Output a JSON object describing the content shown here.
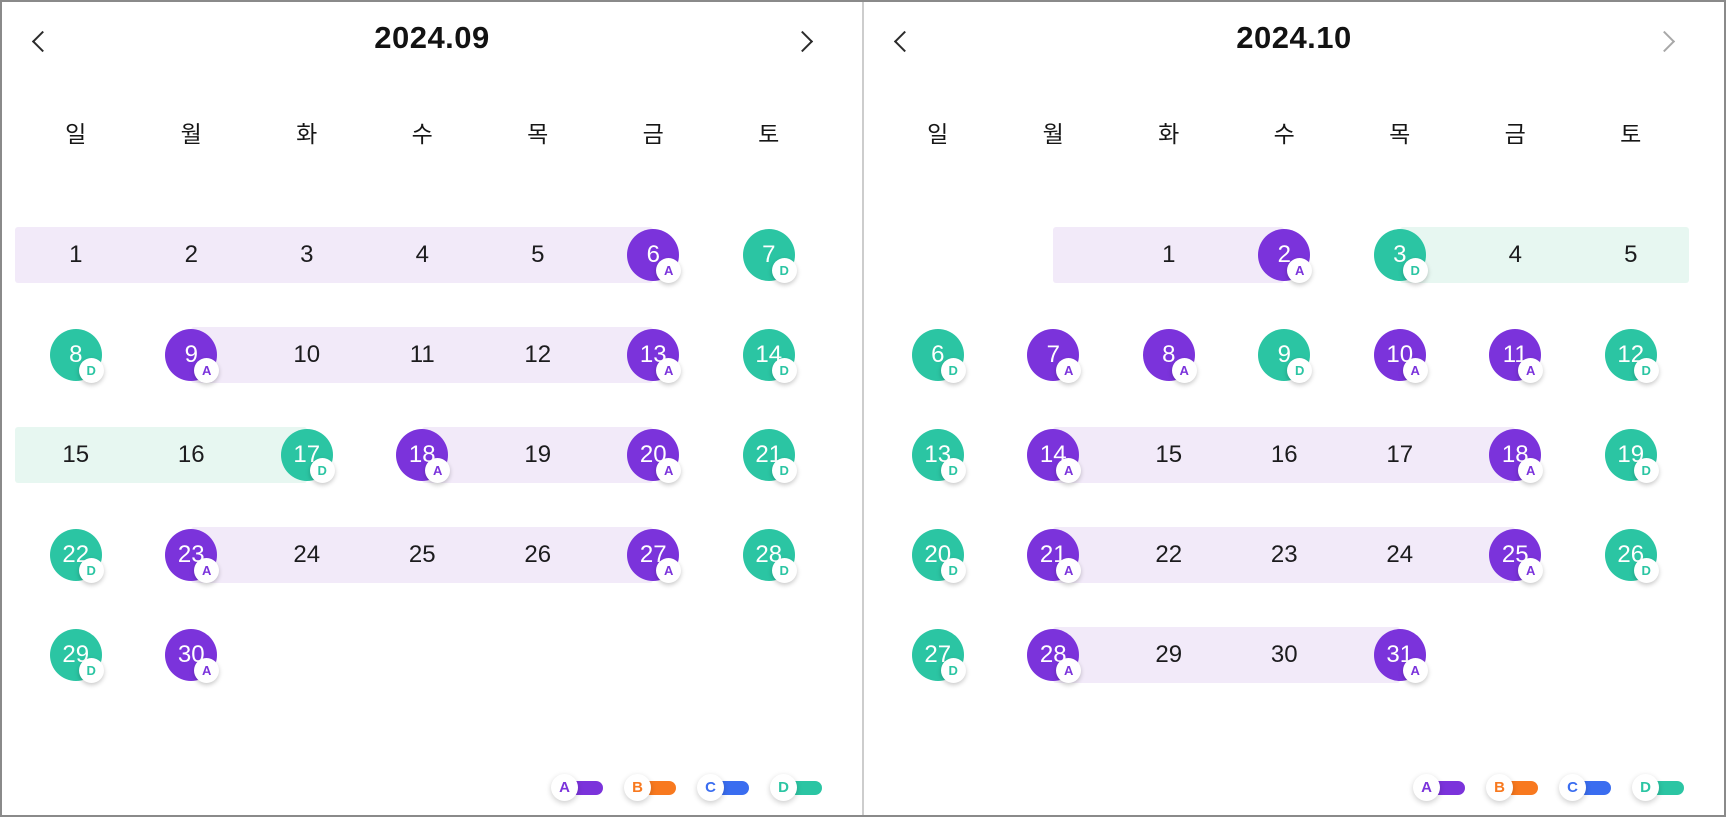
{
  "colors": {
    "A": "#7b33db",
    "B": "#f8791f",
    "C": "#3a6df0",
    "D": "#2bc5a3",
    "band_A": "#f2eaf9",
    "band_D": "#e7f7f1",
    "arrow_enabled": "#2b2b2b",
    "arrow_disabled": "#a8a8a8"
  },
  "weekday_labels": [
    "일",
    "월",
    "화",
    "수",
    "목",
    "금",
    "토"
  ],
  "legend": [
    {
      "label": "A"
    },
    {
      "label": "B"
    },
    {
      "label": "C"
    },
    {
      "label": "D"
    }
  ],
  "months": [
    {
      "title": "2024.09",
      "nav": {
        "prev_enabled": true,
        "next_enabled": true
      },
      "weeks": [
        {
          "bands": [
            {
              "type": "A",
              "from": "edge-left",
              "to": 5
            }
          ],
          "days": [
            {
              "day": 1,
              "col": 0
            },
            {
              "day": 2,
              "col": 1
            },
            {
              "day": 3,
              "col": 2
            },
            {
              "day": 4,
              "col": 3
            },
            {
              "day": 5,
              "col": 4
            },
            {
              "day": 6,
              "col": 5,
              "marker": "A"
            },
            {
              "day": 7,
              "col": 6,
              "marker": "D"
            }
          ]
        },
        {
          "bands": [
            {
              "type": "A",
              "from": 1,
              "to": 5
            }
          ],
          "days": [
            {
              "day": 8,
              "col": 0,
              "marker": "D"
            },
            {
              "day": 9,
              "col": 1,
              "marker": "A"
            },
            {
              "day": 10,
              "col": 2
            },
            {
              "day": 11,
              "col": 3
            },
            {
              "day": 12,
              "col": 4
            },
            {
              "day": 13,
              "col": 5,
              "marker": "A"
            },
            {
              "day": 14,
              "col": 6,
              "marker": "D"
            }
          ]
        },
        {
          "bands": [
            {
              "type": "D",
              "from": "edge-left",
              "to": 2
            },
            {
              "type": "A",
              "from": 3,
              "to": 5
            }
          ],
          "days": [
            {
              "day": 15,
              "col": 0
            },
            {
              "day": 16,
              "col": 1
            },
            {
              "day": 17,
              "col": 2,
              "marker": "D"
            },
            {
              "day": 18,
              "col": 3,
              "marker": "A"
            },
            {
              "day": 19,
              "col": 4
            },
            {
              "day": 20,
              "col": 5,
              "marker": "A"
            },
            {
              "day": 21,
              "col": 6,
              "marker": "D"
            }
          ]
        },
        {
          "bands": [
            {
              "type": "A",
              "from": 1,
              "to": 5
            }
          ],
          "days": [
            {
              "day": 22,
              "col": 0,
              "marker": "D"
            },
            {
              "day": 23,
              "col": 1,
              "marker": "A"
            },
            {
              "day": 24,
              "col": 2
            },
            {
              "day": 25,
              "col": 3
            },
            {
              "day": 26,
              "col": 4
            },
            {
              "day": 27,
              "col": 5,
              "marker": "A"
            },
            {
              "day": 28,
              "col": 6,
              "marker": "D"
            }
          ]
        },
        {
          "bands": [],
          "days": [
            {
              "day": 29,
              "col": 0,
              "marker": "D"
            },
            {
              "day": 30,
              "col": 1,
              "marker": "A"
            }
          ]
        }
      ]
    },
    {
      "title": "2024.10",
      "nav": {
        "prev_enabled": true,
        "next_enabled": false
      },
      "weeks": [
        {
          "bands": [
            {
              "type": "A",
              "from": 1,
              "to": 3
            },
            {
              "type": "D",
              "from": 4,
              "to": "edge-right"
            }
          ],
          "days": [
            {
              "day": 1,
              "col": 2
            },
            {
              "day": 2,
              "col": 3,
              "marker": "A"
            },
            {
              "day": 3,
              "col": 4,
              "marker": "D"
            },
            {
              "day": 4,
              "col": 5
            },
            {
              "day": 5,
              "col": 6
            }
          ]
        },
        {
          "bands": [],
          "days": [
            {
              "day": 6,
              "col": 0,
              "marker": "D"
            },
            {
              "day": 7,
              "col": 1,
              "marker": "A"
            },
            {
              "day": 8,
              "col": 2,
              "marker": "A"
            },
            {
              "day": 9,
              "col": 3,
              "marker": "D"
            },
            {
              "day": 10,
              "col": 4,
              "marker": "A"
            },
            {
              "day": 11,
              "col": 5,
              "marker": "A"
            },
            {
              "day": 12,
              "col": 6,
              "marker": "D"
            }
          ]
        },
        {
          "bands": [
            {
              "type": "A",
              "from": 1,
              "to": 5
            }
          ],
          "days": [
            {
              "day": 13,
              "col": 0,
              "marker": "D"
            },
            {
              "day": 14,
              "col": 1,
              "marker": "A"
            },
            {
              "day": 15,
              "col": 2
            },
            {
              "day": 16,
              "col": 3
            },
            {
              "day": 17,
              "col": 4
            },
            {
              "day": 18,
              "col": 5,
              "marker": "A"
            },
            {
              "day": 19,
              "col": 6,
              "marker": "D"
            }
          ]
        },
        {
          "bands": [
            {
              "type": "A",
              "from": 1,
              "to": 5
            }
          ],
          "days": [
            {
              "day": 20,
              "col": 0,
              "marker": "D"
            },
            {
              "day": 21,
              "col": 1,
              "marker": "A"
            },
            {
              "day": 22,
              "col": 2
            },
            {
              "day": 23,
              "col": 3
            },
            {
              "day": 24,
              "col": 4
            },
            {
              "day": 25,
              "col": 5,
              "marker": "A"
            },
            {
              "day": 26,
              "col": 6,
              "marker": "D"
            }
          ]
        },
        {
          "bands": [
            {
              "type": "A",
              "from": 1,
              "to": 4
            }
          ],
          "days": [
            {
              "day": 27,
              "col": 0,
              "marker": "D"
            },
            {
              "day": 28,
              "col": 1,
              "marker": "A"
            },
            {
              "day": 29,
              "col": 2
            },
            {
              "day": 30,
              "col": 3
            },
            {
              "day": 31,
              "col": 4,
              "marker": "A"
            }
          ]
        }
      ]
    }
  ]
}
